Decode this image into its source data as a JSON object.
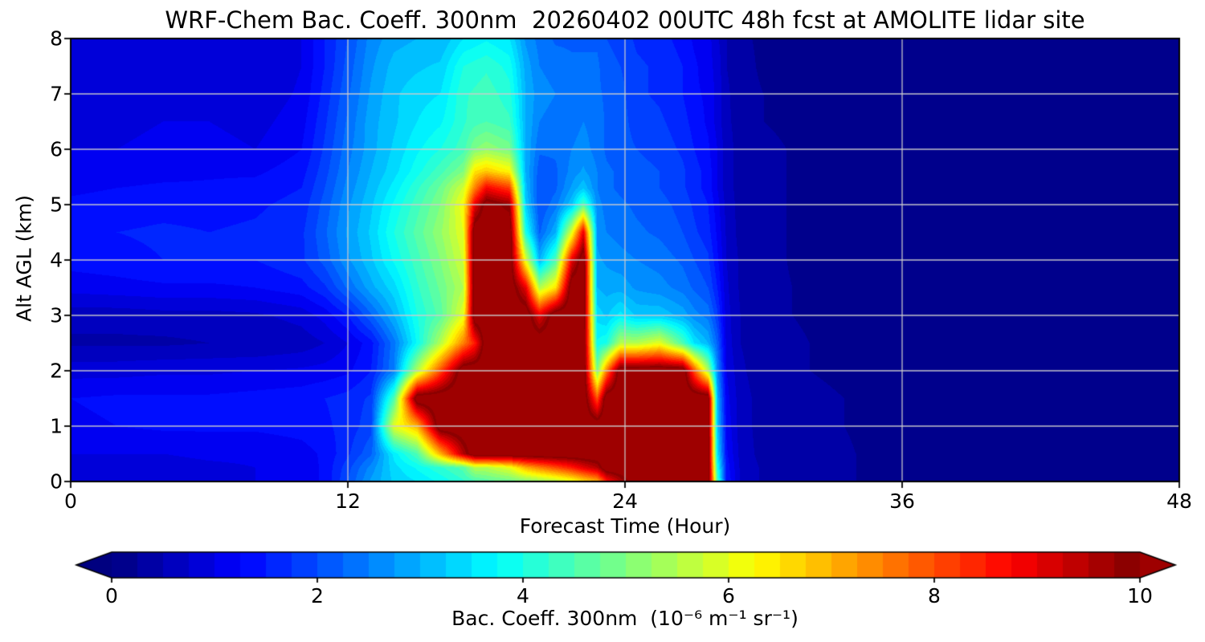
{
  "figure": {
    "title": "WRF-Chem Bac. Coeff. 300nm  20260402 00UTC 48h fcst at AMOLITE lidar site"
  },
  "chart_data": {
    "type": "heatmap",
    "title": "WRF-Chem Bac. Coeff. 300nm  20260402 00UTC 48h fcst at AMOLITE lidar site",
    "xlabel": "Forecast Time (Hour)",
    "ylabel": "Alt AGL (km)",
    "xlim": [
      0,
      48
    ],
    "ylim": [
      0,
      8
    ],
    "xticks": [
      0,
      12,
      24,
      36,
      48
    ],
    "yticks": [
      0,
      1,
      2,
      3,
      4,
      5,
      6,
      7,
      8
    ],
    "grid": true,
    "gridline_color": "#cccccc",
    "colormap": "jet",
    "levels_step": 0.25,
    "colorbar": {
      "label": "Bac. Coeff. 300nm  (10⁻⁶ m⁻¹ sr⁻¹)",
      "ticks": [
        0,
        2,
        4,
        6,
        8,
        10
      ],
      "range": [
        0,
        10
      ],
      "extend": "both",
      "under_color": "#000080",
      "over_color": "#9e0000"
    },
    "hours": [
      0,
      2,
      4,
      6,
      8,
      10,
      11,
      12,
      13,
      14,
      15,
      16,
      17,
      17.5,
      18,
      19,
      19.7,
      20.3,
      21,
      21.7,
      22.2,
      22.8,
      23.2,
      23.8,
      24.5,
      25.5,
      26.5,
      27,
      27.6,
      28,
      28.4,
      29,
      30,
      32,
      36,
      40,
      44,
      48
    ],
    "alt_km": [
      0,
      0.25,
      0.5,
      1,
      1.5,
      2,
      2.5,
      3,
      3.5,
      4,
      4.5,
      5,
      5.3,
      5.6,
      6,
      6.5,
      7,
      7.5,
      8
    ],
    "values": [
      [
        1.0,
        1.0,
        1.0,
        1.2,
        1.25,
        0.9,
        0.45,
        0.6,
        1.1,
        1.35,
        1.45,
        1.3,
        1.2,
        1.1,
        1.0,
        0.95,
        0.9,
        0.85,
        0.8
      ],
      [
        0.95,
        0.95,
        1.0,
        1.25,
        1.3,
        0.9,
        0.45,
        0.6,
        1.15,
        1.4,
        1.5,
        1.35,
        1.25,
        1.1,
        1.0,
        0.95,
        0.9,
        0.85,
        0.85
      ],
      [
        0.9,
        0.9,
        1.0,
        1.3,
        1.3,
        0.95,
        0.45,
        0.65,
        1.2,
        1.5,
        1.55,
        1.4,
        1.3,
        1.15,
        1.05,
        1.0,
        0.95,
        0.9,
        0.85
      ],
      [
        1.0,
        0.95,
        1.05,
        1.3,
        1.3,
        0.95,
        0.5,
        0.65,
        1.2,
        1.5,
        1.5,
        1.4,
        1.3,
        1.2,
        1.1,
        1.0,
        0.9,
        0.85,
        0.8
      ],
      [
        1.0,
        1.0,
        1.05,
        1.3,
        1.35,
        1.0,
        0.5,
        0.7,
        1.25,
        1.5,
        1.55,
        1.45,
        1.35,
        1.2,
        1.0,
        0.9,
        0.8,
        0.75,
        0.75
      ],
      [
        1.1,
        1.1,
        1.15,
        1.35,
        1.4,
        1.05,
        0.6,
        0.85,
        1.4,
        1.7,
        1.7,
        1.6,
        1.5,
        1.4,
        1.25,
        1.15,
        1.05,
        1.0,
        1.0
      ],
      [
        1.3,
        1.3,
        1.3,
        1.45,
        1.5,
        1.1,
        0.75,
        1.1,
        1.7,
        2.1,
        2.2,
        2.1,
        2.0,
        1.9,
        1.8,
        1.7,
        1.6,
        1.5,
        1.5
      ],
      [
        2.0,
        1.9,
        1.7,
        1.6,
        1.6,
        1.2,
        1.0,
        1.5,
        2.3,
        2.7,
        2.8,
        2.7,
        2.6,
        2.5,
        2.4,
        2.3,
        2.2,
        2.1,
        2.0
      ],
      [
        2.8,
        2.6,
        2.2,
        1.9,
        1.8,
        1.5,
        1.4,
        2.2,
        2.9,
        3.2,
        3.3,
        3.2,
        3.1,
        3.0,
        2.9,
        2.9,
        2.8,
        2.7,
        2.6
      ],
      [
        3.3,
        3.4,
        3.6,
        6.0,
        4.5,
        2.5,
        2.4,
        3.0,
        3.4,
        3.8,
        4.0,
        3.8,
        3.6,
        3.4,
        3.3,
        3.2,
        3.2,
        3.1,
        2.9
      ],
      [
        3.5,
        3.8,
        4.5,
        7.0,
        10.5,
        5.5,
        3.8,
        4.0,
        4.2,
        4.4,
        4.6,
        4.4,
        4.2,
        3.9,
        3.7,
        3.5,
        3.4,
        3.2,
        3.0
      ],
      [
        3.8,
        4.2,
        7.0,
        10.5,
        10.5,
        8.0,
        5.5,
        4.6,
        4.8,
        5.0,
        5.2,
        5.0,
        4.8,
        4.4,
        4.0,
        3.7,
        3.5,
        3.3,
        3.0
      ],
      [
        4.2,
        4.6,
        9.5,
        10.5,
        10.5,
        10.5,
        7.5,
        6.0,
        5.5,
        5.8,
        6.0,
        6.2,
        5.8,
        5.0,
        4.4,
        4.2,
        4.2,
        4.0,
        3.5
      ],
      [
        4.4,
        5.5,
        10.5,
        10.5,
        10.5,
        10.5,
        8.5,
        10.5,
        10.5,
        10.5,
        10.5,
        9.0,
        7.5,
        6.5,
        5.0,
        4.4,
        4.3,
        4.1,
        3.6
      ],
      [
        4.6,
        5.5,
        10.5,
        10.5,
        10.5,
        10.5,
        10.5,
        10.5,
        10.5,
        10.5,
        10.5,
        10.3,
        8.8,
        6.8,
        5.2,
        4.5,
        4.4,
        4.2,
        3.7
      ],
      [
        4.8,
        6.0,
        10.5,
        10.5,
        10.5,
        10.5,
        10.5,
        10.5,
        10.5,
        10.5,
        10.5,
        9.8,
        8.2,
        6.3,
        4.9,
        4.3,
        4.1,
        3.9,
        3.5
      ],
      [
        5.0,
        7.0,
        10.5,
        10.5,
        10.5,
        10.5,
        10.5,
        10.5,
        9.0,
        6.0,
        4.0,
        3.3,
        3.1,
        3.0,
        3.0,
        3.0,
        3.0,
        2.9,
        2.7
      ],
      [
        5.2,
        7.5,
        10.5,
        10.5,
        10.5,
        10.5,
        10.5,
        9.0,
        5.5,
        3.0,
        2.2,
        2.0,
        2.0,
        2.1,
        2.3,
        2.5,
        2.6,
        2.5,
        2.4
      ],
      [
        5.5,
        8.0,
        10.5,
        10.5,
        10.5,
        10.5,
        10.5,
        10.5,
        6.5,
        4.5,
        3.0,
        2.4,
        2.2,
        2.2,
        2.3,
        2.4,
        2.5,
        2.4,
        2.2
      ],
      [
        6.0,
        8.5,
        10.5,
        10.5,
        10.5,
        10.5,
        10.5,
        10.5,
        10.5,
        9.0,
        6.0,
        3.2,
        2.8,
        2.6,
        2.5,
        2.4,
        2.4,
        2.3,
        2.2
      ],
      [
        6.5,
        9.0,
        10.5,
        10.5,
        10.5,
        10.5,
        10.5,
        10.5,
        10.5,
        10.5,
        9.0,
        4.5,
        3.2,
        2.8,
        2.6,
        2.5,
        2.4,
        2.3,
        2.2
      ],
      [
        7.0,
        9.5,
        10.5,
        10.5,
        8.0,
        5.0,
        3.8,
        3.4,
        3.0,
        2.8,
        2.7,
        2.6,
        2.5,
        2.5,
        2.4,
        2.4,
        2.3,
        2.3,
        2.2
      ],
      [
        8.5,
        10.5,
        10.5,
        10.5,
        10.5,
        7.5,
        4.0,
        3.2,
        2.9,
        2.7,
        2.5,
        2.4,
        2.3,
        2.3,
        2.2,
        2.2,
        2.2,
        2.1,
        2.0
      ],
      [
        9.5,
        10.5,
        10.5,
        10.5,
        10.5,
        10.5,
        5.5,
        3.6,
        2.9,
        2.6,
        2.4,
        2.3,
        2.2,
        2.2,
        2.1,
        2.1,
        2.1,
        2.0,
        1.9
      ],
      [
        10.5,
        10.5,
        10.5,
        10.5,
        10.5,
        10.5,
        5.5,
        3.2,
        2.7,
        2.5,
        2.3,
        2.2,
        2.1,
        2.1,
        2.0,
        1.9,
        1.8,
        1.8,
        1.7
      ],
      [
        10.5,
        10.5,
        10.5,
        10.5,
        10.5,
        10.5,
        6.0,
        3.2,
        2.6,
        2.4,
        2.2,
        2.1,
        2.0,
        2.0,
        1.9,
        1.8,
        1.7,
        1.7,
        1.6
      ],
      [
        10.5,
        10.5,
        10.5,
        10.5,
        10.5,
        10.5,
        4.5,
        2.9,
        2.4,
        2.2,
        2.0,
        1.9,
        1.8,
        1.8,
        1.7,
        1.6,
        1.5,
        1.5,
        1.4
      ],
      [
        10.5,
        10.5,
        10.5,
        10.5,
        10.5,
        8.0,
        3.5,
        2.6,
        2.2,
        2.0,
        1.8,
        1.7,
        1.6,
        1.6,
        1.5,
        1.4,
        1.3,
        1.3,
        1.2
      ],
      [
        10.5,
        10.5,
        10.5,
        10.5,
        10.5,
        5.5,
        3.0,
        2.4,
        2.0,
        1.8,
        1.6,
        1.5,
        1.4,
        1.4,
        1.3,
        1.2,
        1.2,
        1.1,
        1.1
      ],
      [
        4.5,
        4.0,
        3.5,
        3.2,
        3.0,
        2.6,
        2.2,
        1.8,
        1.5,
        1.3,
        1.2,
        1.1,
        1.0,
        1.0,
        1.0,
        0.9,
        0.9,
        0.9,
        0.8
      ],
      [
        1.5,
        1.4,
        1.3,
        1.2,
        1.1,
        1.0,
        0.9,
        0.85,
        0.8,
        0.75,
        0.7,
        0.65,
        0.6,
        0.6,
        0.6,
        0.55,
        0.55,
        0.5,
        0.5
      ],
      [
        0.7,
        0.7,
        0.65,
        0.6,
        0.6,
        0.55,
        0.5,
        0.5,
        0.45,
        0.45,
        0.4,
        0.4,
        0.4,
        0.4,
        0.4,
        0.4,
        0.35,
        0.35,
        0.3
      ],
      [
        0.45,
        0.45,
        0.4,
        0.4,
        0.4,
        0.35,
        0.35,
        0.3,
        0.3,
        0.3,
        0.3,
        0.3,
        0.3,
        0.3,
        0.3,
        0.25,
        0.25,
        0.2,
        0.2
      ],
      [
        0.3,
        0.3,
        0.3,
        0.28,
        0.28,
        0.25,
        0.25,
        0.22,
        0.22,
        0.2,
        0.2,
        0.2,
        0.2,
        0.2,
        0.2,
        0.18,
        0.18,
        0.15,
        0.15
      ],
      [
        0.2,
        0.2,
        0.2,
        0.2,
        0.2,
        0.18,
        0.18,
        0.18,
        0.15,
        0.15,
        0.15,
        0.15,
        0.15,
        0.15,
        0.15,
        0.12,
        0.12,
        0.1,
        0.1
      ],
      [
        0.15,
        0.15,
        0.15,
        0.15,
        0.15,
        0.12,
        0.12,
        0.12,
        0.12,
        0.12,
        0.12,
        0.12,
        0.12,
        0.12,
        0.12,
        0.1,
        0.1,
        0.1,
        0.1
      ],
      [
        0.12,
        0.12,
        0.12,
        0.12,
        0.12,
        0.1,
        0.1,
        0.1,
        0.1,
        0.1,
        0.1,
        0.1,
        0.1,
        0.1,
        0.1,
        0.1,
        0.1,
        0.08,
        0.08
      ],
      [
        0.1,
        0.1,
        0.1,
        0.1,
        0.1,
        0.08,
        0.08,
        0.08,
        0.08,
        0.08,
        0.08,
        0.08,
        0.08,
        0.08,
        0.08,
        0.08,
        0.08,
        0.05,
        0.05
      ]
    ]
  }
}
